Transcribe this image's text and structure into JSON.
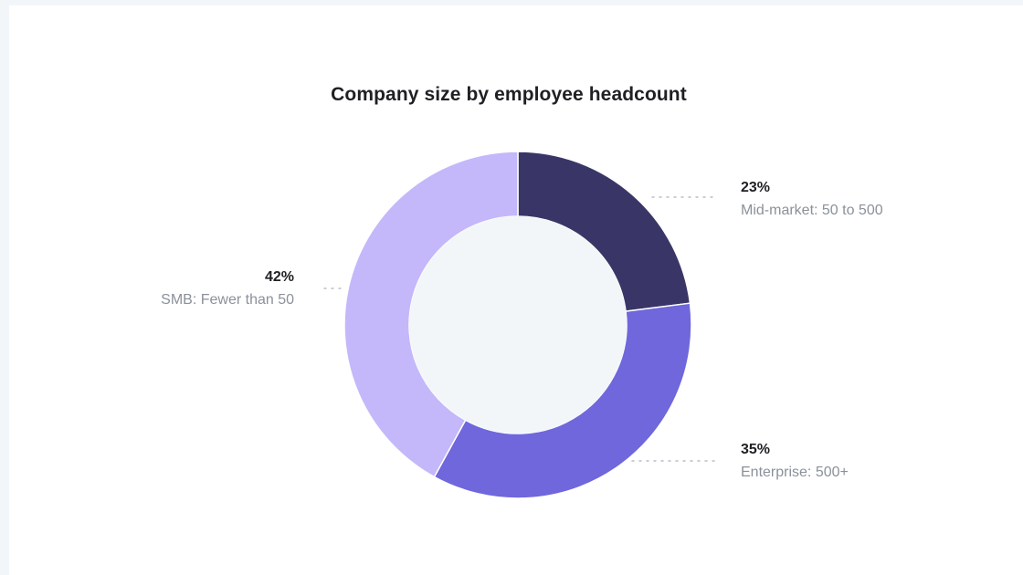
{
  "chart_data": {
    "type": "pie",
    "variant": "donut",
    "title": "Company size by employee headcount",
    "slices": [
      {
        "label": "Mid-market: 50 to 500",
        "value": 23,
        "display": "23%",
        "color": "#393667"
      },
      {
        "label": "Enterprise: 500+",
        "value": 35,
        "display": "35%",
        "color": "#6f67db"
      },
      {
        "label": "SMB: Fewer than 50",
        "value": 42,
        "display": "42%",
        "color": "#c4b8fa"
      }
    ],
    "legend": "none"
  },
  "colors": {
    "background": "#f3f6f9",
    "card": "#ffffff",
    "hole": "#f3f6f9"
  }
}
